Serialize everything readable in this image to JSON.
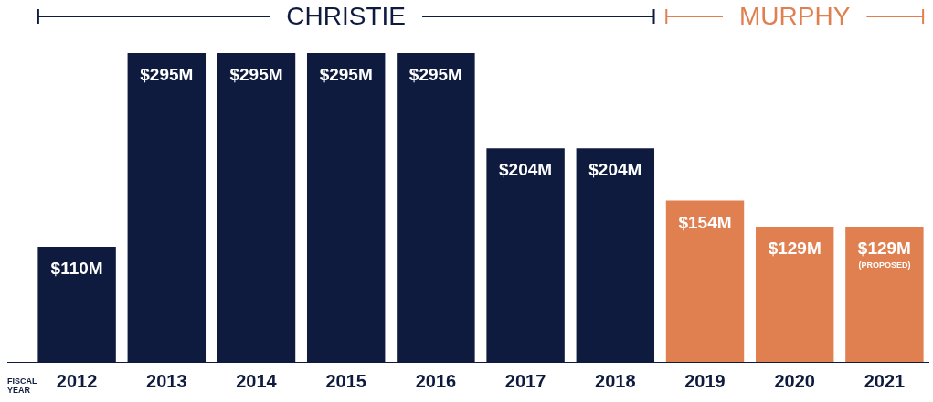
{
  "chart_data": {
    "type": "bar",
    "xlabel": "FISCAL YEAR",
    "categories": [
      "2012",
      "2013",
      "2014",
      "2015",
      "2016",
      "2017",
      "2018",
      "2019",
      "2020",
      "2021"
    ],
    "values": [
      110,
      295,
      295,
      295,
      295,
      204,
      204,
      154,
      129,
      129
    ],
    "colors": [
      "#0e1b3f",
      "#0e1b3f",
      "#0e1b3f",
      "#0e1b3f",
      "#0e1b3f",
      "#0e1b3f",
      "#0e1b3f",
      "#e07f50",
      "#e07f50",
      "#e07f50"
    ],
    "value_labels": [
      "$110M",
      "$295M",
      "$295M",
      "$295M",
      "$295M",
      "$204M",
      "$204M",
      "$154M",
      "$129M",
      "$129M\n(PROPOSED)"
    ],
    "annotations": [
      "CHRISTIE",
      "MURPHY"
    ],
    "grid": false,
    "legend": false
  }
}
